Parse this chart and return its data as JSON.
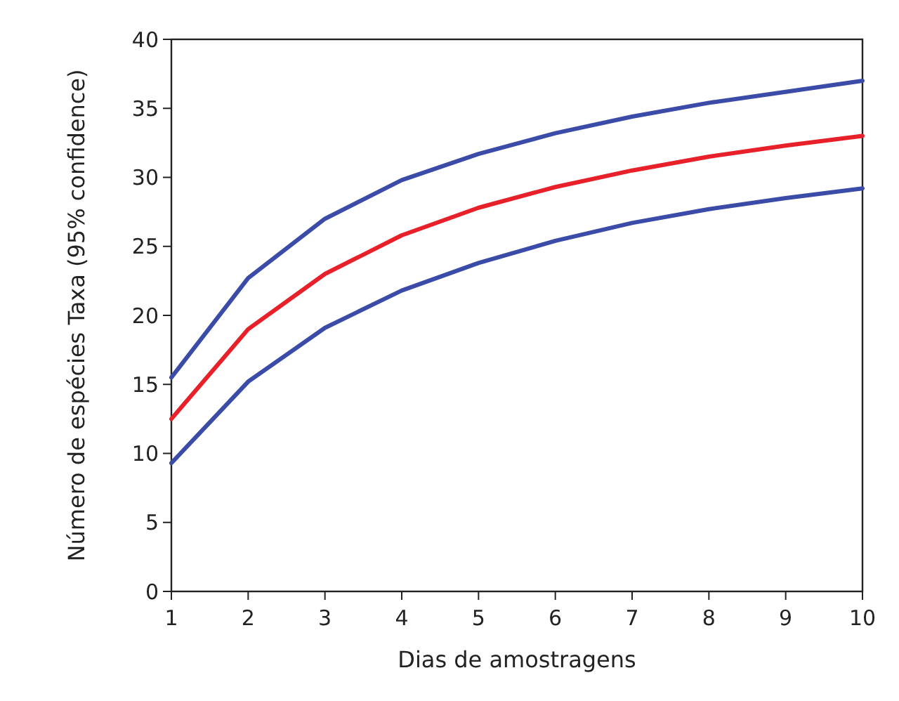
{
  "chart_data": {
    "type": "line",
    "xlabel": "Dias de amostragens",
    "ylabel": "Número de espécies Taxa (95% confidence)",
    "x": [
      1,
      2,
      3,
      4,
      5,
      6,
      7,
      8,
      9,
      10
    ],
    "series": [
      {
        "color": "#3b4ca8",
        "values": [
          15.5,
          22.7,
          27,
          29.8,
          31.7,
          33.2,
          34.4,
          35.4,
          36.2,
          37
        ]
      },
      {
        "color": "#e8202a",
        "values": [
          12.5,
          19,
          23,
          25.8,
          27.8,
          29.3,
          30.5,
          31.5,
          32.3,
          33
        ]
      },
      {
        "color": "#3b4ca8",
        "values": [
          9.3,
          15.2,
          19.1,
          21.8,
          23.8,
          25.4,
          26.7,
          27.7,
          28.5,
          29.2
        ]
      }
    ],
    "xlim": [
      1,
      10
    ],
    "xticks": [
      1,
      2,
      3,
      4,
      5,
      6,
      7,
      8,
      9,
      10
    ],
    "ylim": [
      0,
      40
    ],
    "yticks": [
      0,
      5,
      10,
      15,
      20,
      25,
      30,
      35,
      40
    ],
    "grid": false,
    "marker": "none",
    "line_style": "solid"
  }
}
